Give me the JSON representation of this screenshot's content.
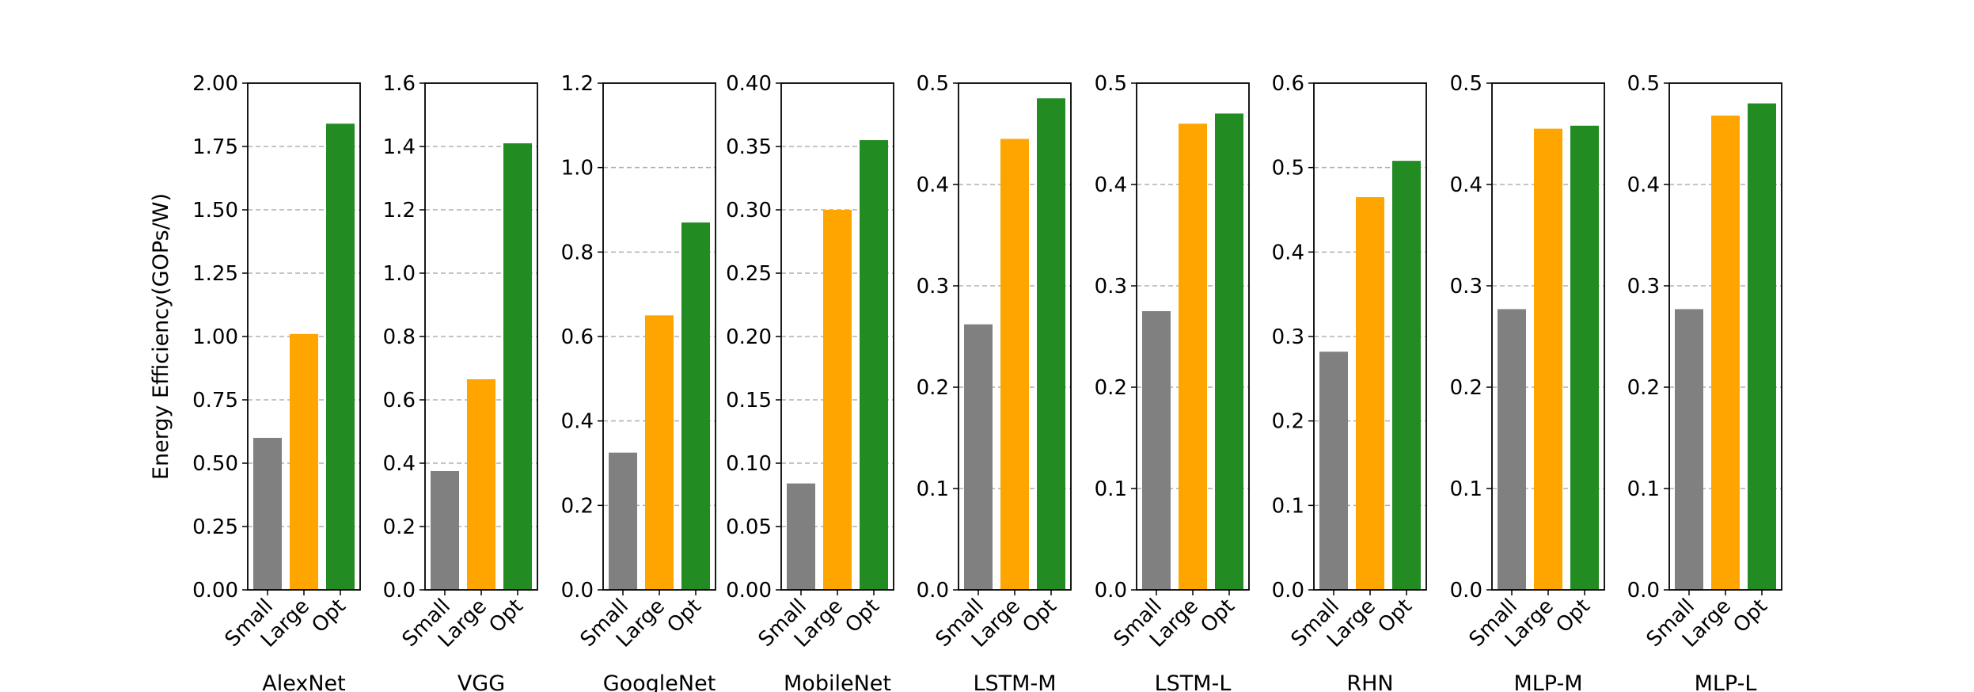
{
  "chart_data": {
    "type": "bar",
    "ylabel": "Energy Efficiency(GOPs/W)",
    "categories": [
      "Small",
      "Large",
      "Opt"
    ],
    "colors": [
      "#808080",
      "#ffa500",
      "#228b22"
    ],
    "grid": "y-dashed",
    "panels": [
      {
        "title": "AlexNet",
        "values": [
          0.6,
          1.01,
          1.84
        ],
        "ylim": [
          0,
          2.0
        ],
        "yticks": [
          "0.00",
          "0.25",
          "0.50",
          "0.75",
          "1.00",
          "1.25",
          "1.50",
          "1.75",
          "2.00"
        ]
      },
      {
        "title": "VGG",
        "values": [
          0.375,
          0.665,
          1.41
        ],
        "ylim": [
          0,
          1.6
        ],
        "yticks": [
          "0.0",
          "0.2",
          "0.4",
          "0.6",
          "0.8",
          "1.0",
          "1.2",
          "1.4",
          "1.6"
        ]
      },
      {
        "title": "GoogleNet",
        "values": [
          0.325,
          0.65,
          0.87
        ],
        "ylim": [
          0,
          1.2
        ],
        "yticks": [
          "0.0",
          "0.2",
          "0.4",
          "0.6",
          "0.8",
          "1.0",
          "1.2"
        ]
      },
      {
        "title": "MobileNet",
        "values": [
          0.084,
          0.3,
          0.355
        ],
        "ylim": [
          0,
          0.4
        ],
        "yticks": [
          "0.00",
          "0.05",
          "0.10",
          "0.15",
          "0.20",
          "0.25",
          "0.30",
          "0.35",
          "0.40"
        ]
      },
      {
        "title": "LSTM-M",
        "values": [
          0.262,
          0.445,
          0.485
        ],
        "ylim": [
          0,
          0.5
        ],
        "yticks": [
          "0.0",
          "0.1",
          "0.2",
          "0.3",
          "0.4",
          "0.5"
        ]
      },
      {
        "title": "LSTM-L",
        "values": [
          0.275,
          0.46,
          0.47
        ],
        "ylim": [
          0,
          0.5
        ],
        "yticks": [
          "0.0",
          "0.1",
          "0.2",
          "0.3",
          "0.4",
          "0.5"
        ]
      },
      {
        "title": "RHN",
        "values": [
          0.282,
          0.465,
          0.508
        ],
        "ylim": [
          0,
          0.6
        ],
        "yticks": [
          "0.0",
          "0.1",
          "0.2",
          "0.3",
          "0.4",
          "0.5",
          "0.6"
        ]
      },
      {
        "title": "MLP-M",
        "values": [
          0.277,
          0.455,
          0.458
        ],
        "ylim": [
          0,
          0.5
        ],
        "yticks": [
          "0.0",
          "0.1",
          "0.2",
          "0.3",
          "0.4",
          "0.5"
        ]
      },
      {
        "title": "MLP-L",
        "values": [
          0.277,
          0.468,
          0.48
        ],
        "ylim": [
          0,
          0.5
        ],
        "yticks": [
          "0.0",
          "0.1",
          "0.2",
          "0.3",
          "0.4",
          "0.5"
        ]
      }
    ]
  }
}
